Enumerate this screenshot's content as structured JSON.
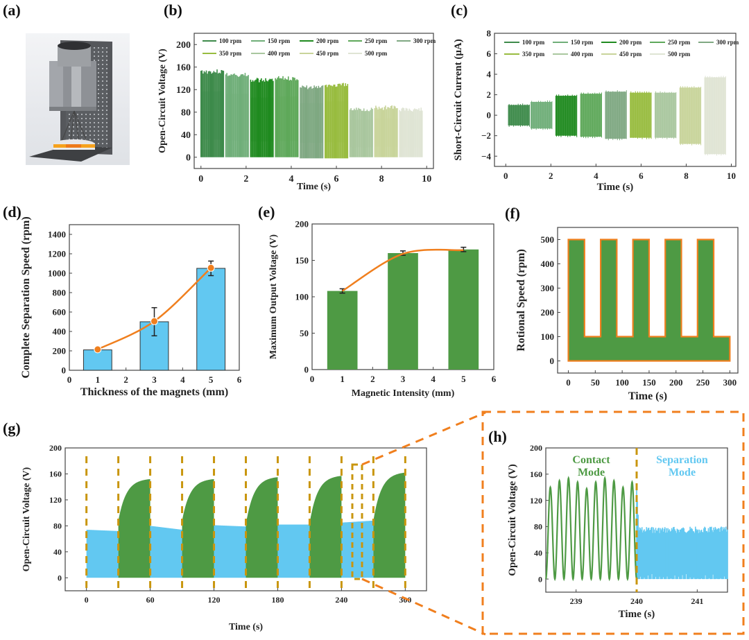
{
  "panels": {
    "a": {
      "label": "(a)",
      "image_description": "3D render of rotary TENG test setup: motor housing on perforated vertical plate, cone linkage to orange/yellow disc device on base plate"
    },
    "b": {
      "label": "(b)"
    },
    "c": {
      "label": "(c)"
    },
    "d": {
      "label": "(d)"
    },
    "e": {
      "label": "(e)"
    },
    "f": {
      "label": "(f)"
    },
    "g": {
      "label": "(g)"
    },
    "h": {
      "label": "(h)"
    }
  },
  "colors": {
    "orange": "#f07f1e",
    "dash_gold": "#c9960e",
    "green": "#4e9a44",
    "blue": "#62c8f1",
    "rpm_greens": [
      "#3d8a4a",
      "#6fae78",
      "#1f8a1f",
      "#5ea85a",
      "#7fa882",
      "#98bc3f",
      "#a9c79e",
      "#c8d49a",
      "#dfe4d4"
    ]
  },
  "chart_data": [
    {
      "id": "b",
      "type": "line",
      "title": "",
      "xlabel": "Time (s)",
      "ylabel": "Open-Circuit Voltage (V)",
      "xlim": [
        -0.3,
        10.3
      ],
      "ylim": [
        -20,
        220
      ],
      "xticks": [
        "0",
        "2",
        "4",
        "6",
        "8",
        "10"
      ],
      "yticks": [
        "0",
        "40",
        "80",
        "120",
        "160",
        "200"
      ],
      "legend": {
        "placement": "top",
        "entries": [
          "100 rpm",
          "150 rpm",
          "200 rpm",
          "250 rpm",
          "300 rpm",
          "350 rpm",
          "400 rpm",
          "450 rpm",
          "500 rpm"
        ]
      },
      "series": [
        {
          "name": "100 rpm",
          "t_start": 0.0,
          "t_end": 1.0,
          "peak": 156,
          "min": 0
        },
        {
          "name": "150 rpm",
          "t_start": 1.1,
          "t_end": 2.1,
          "peak": 150,
          "min": 0
        },
        {
          "name": "200 rpm",
          "t_start": 2.2,
          "t_end": 3.2,
          "peak": 141,
          "min": 0
        },
        {
          "name": "250 rpm",
          "t_start": 3.3,
          "t_end": 4.3,
          "peak": 144,
          "min": 0
        },
        {
          "name": "300 rpm",
          "t_start": 4.4,
          "t_end": 5.4,
          "peak": 128,
          "min": -2
        },
        {
          "name": "350 rpm",
          "t_start": 5.5,
          "t_end": 6.5,
          "peak": 132,
          "min": -2
        },
        {
          "name": "400 rpm",
          "t_start": 6.6,
          "t_end": 7.6,
          "peak": 89,
          "min": 0
        },
        {
          "name": "450 rpm",
          "t_start": 7.7,
          "t_end": 8.7,
          "peak": 92,
          "min": 0
        },
        {
          "name": "500 rpm",
          "t_start": 8.8,
          "t_end": 9.8,
          "peak": 89,
          "min": 0
        }
      ]
    },
    {
      "id": "c",
      "type": "line",
      "xlabel": "Time (s)",
      "ylabel": "Short-Circuit Current (μA)",
      "xlim": [
        -0.5,
        10.2
      ],
      "ylim": [
        -5,
        8
      ],
      "xticks": [
        "0",
        "2",
        "4",
        "6",
        "8",
        "10"
      ],
      "yticks": [
        "−4",
        "−2",
        "0",
        "2",
        "4",
        "6",
        "8"
      ],
      "legend": {
        "placement": "top",
        "entries": [
          "100 rpm",
          "150 rpm",
          "200 rpm",
          "250 rpm",
          "300 rpm",
          "350 rpm",
          "400 rpm",
          "450 rpm",
          "500 rpm"
        ]
      },
      "series": [
        {
          "name": "100 rpm",
          "t_start": 0.1,
          "t_end": 1.1,
          "max": 1.0,
          "min": -1.0
        },
        {
          "name": "150 rpm",
          "t_start": 1.1,
          "t_end": 2.1,
          "max": 1.3,
          "min": -1.3
        },
        {
          "name": "200 rpm",
          "t_start": 2.2,
          "t_end": 3.2,
          "max": 1.9,
          "min": -2.0
        },
        {
          "name": "250 rpm",
          "t_start": 3.3,
          "t_end": 4.3,
          "max": 2.1,
          "min": -2.1
        },
        {
          "name": "300 rpm",
          "t_start": 4.4,
          "t_end": 5.4,
          "max": 2.3,
          "min": -2.3
        },
        {
          "name": "350 rpm",
          "t_start": 5.5,
          "t_end": 6.5,
          "max": 2.2,
          "min": -2.2
        },
        {
          "name": "400 rpm",
          "t_start": 6.6,
          "t_end": 7.6,
          "max": 2.2,
          "min": -2.2
        },
        {
          "name": "450 rpm",
          "t_start": 7.7,
          "t_end": 8.7,
          "max": 2.7,
          "min": -2.8
        },
        {
          "name": "500 rpm",
          "t_start": 8.8,
          "t_end": 9.8,
          "max": 3.7,
          "min": -3.8
        }
      ]
    },
    {
      "id": "d",
      "type": "bar",
      "xlabel": "Thickness of the magnets (mm)",
      "ylabel": "Complete Separation Speed (rpm)",
      "xlim": [
        0,
        6
      ],
      "ylim": [
        0,
        1500
      ],
      "xticks": [
        "0",
        "1",
        "2",
        "3",
        "4",
        "5",
        "6"
      ],
      "yticks": [
        "0",
        "200",
        "400",
        "600",
        "800",
        "1000",
        "1200",
        "1400"
      ],
      "categories": [
        1,
        3,
        5
      ],
      "values": [
        210,
        500,
        1050
      ],
      "errors": [
        10,
        145,
        75
      ],
      "line_overlay": {
        "x": [
          1,
          3,
          5
        ],
        "y": [
          215,
          505,
          1055
        ]
      }
    },
    {
      "id": "e",
      "type": "bar",
      "xlabel": "Magnetic Intensity (mm)",
      "ylabel": "Maximum Output Voltage (V)",
      "xlim": [
        0,
        6
      ],
      "ylim": [
        0,
        200
      ],
      "xticks": [
        "0",
        "1",
        "2",
        "3",
        "4",
        "5",
        "6"
      ],
      "yticks": [
        "0",
        "50",
        "100",
        "150",
        "200"
      ],
      "categories": [
        1,
        3,
        5
      ],
      "values": [
        108,
        160,
        165
      ],
      "errors": [
        3,
        3,
        3
      ],
      "line_overlay": {
        "x": [
          1,
          3,
          5
        ],
        "y": [
          108,
          159,
          164
        ]
      }
    },
    {
      "id": "f",
      "type": "area",
      "xlabel": "Time (s)",
      "ylabel": "Rotional Speed (rpm)",
      "xlim": [
        -20,
        315
      ],
      "ylim": [
        -50,
        550
      ],
      "xticks": [
        "0",
        "50",
        "100",
        "150",
        "200",
        "250",
        "300"
      ],
      "yticks": [
        "0",
        "100",
        "200",
        "300",
        "400",
        "500"
      ],
      "x": [
        0,
        0,
        30,
        30,
        60,
        60,
        90,
        90,
        120,
        120,
        150,
        150,
        180,
        180,
        210,
        210,
        240,
        240,
        270,
        270,
        300,
        300
      ],
      "y": [
        0,
        500,
        500,
        100,
        100,
        500,
        500,
        100,
        100,
        500,
        500,
        100,
        100,
        500,
        500,
        100,
        100,
        500,
        500,
        100,
        100,
        0
      ]
    },
    {
      "id": "g",
      "type": "area",
      "xlabel": "Time (s)",
      "ylabel": "Open-Circuit Voltage (V)",
      "xlim": [
        -20,
        320
      ],
      "ylim": [
        -20,
        200
      ],
      "xticks": [
        "0",
        "60",
        "120",
        "180",
        "240",
        "300"
      ],
      "yticks": [
        "0",
        "40",
        "80",
        "120",
        "160",
        "200"
      ],
      "segments": [
        {
          "mode": "separation",
          "t_start": 0,
          "t_end": 30,
          "v_start": 74,
          "v_end": 72
        },
        {
          "mode": "contact",
          "t_start": 30,
          "t_end": 60,
          "v_start": 88,
          "v_end": 152
        },
        {
          "mode": "separation",
          "t_start": 60,
          "t_end": 90,
          "v_start": 80,
          "v_end": 74
        },
        {
          "mode": "contact",
          "t_start": 90,
          "t_end": 120,
          "v_start": 88,
          "v_end": 152
        },
        {
          "mode": "separation",
          "t_start": 120,
          "t_end": 150,
          "v_start": 81,
          "v_end": 79
        },
        {
          "mode": "contact",
          "t_start": 150,
          "t_end": 180,
          "v_start": 82,
          "v_end": 155
        },
        {
          "mode": "separation",
          "t_start": 180,
          "t_end": 210,
          "v_start": 82,
          "v_end": 82
        },
        {
          "mode": "contact",
          "t_start": 210,
          "t_end": 240,
          "v_start": 84,
          "v_end": 157
        },
        {
          "mode": "separation",
          "t_start": 240,
          "t_end": 270,
          "v_start": 85,
          "v_end": 88
        },
        {
          "mode": "contact",
          "t_start": 270,
          "t_end": 300,
          "v_start": 88,
          "v_end": 162
        }
      ],
      "dashed_lines_x": [
        0,
        30,
        60,
        90,
        120,
        150,
        180,
        210,
        240,
        270,
        300
      ]
    },
    {
      "id": "h",
      "type": "line",
      "xlabel": "Time (s)",
      "ylabel": "Open-Circuit Voltage (V)",
      "xlim": [
        238.5,
        241.5
      ],
      "ylim": [
        -20,
        200
      ],
      "xticks": [
        "239",
        "240",
        "241"
      ],
      "yticks": [
        "0",
        "40",
        "80",
        "120",
        "160",
        "200"
      ],
      "annotations": [
        {
          "text_lines": [
            "Contact",
            "Mode"
          ],
          "color_key": "green"
        },
        {
          "text_lines": [
            "Separation",
            "Mode"
          ],
          "color_key": "blue"
        }
      ],
      "contact": {
        "t_start": 238.5,
        "t_end": 240.0,
        "peaks": [
          140,
          150,
          154,
          148,
          138,
          148,
          154,
          150,
          140,
          148
        ]
      },
      "separation": {
        "t_start": 240.0,
        "t_end": 241.5,
        "max": 80,
        "min": 0,
        "initial_spike": 138
      },
      "dashed_line_x": 240.0
    }
  ]
}
